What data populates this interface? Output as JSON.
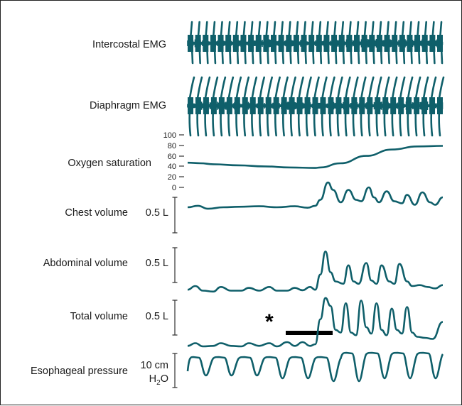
{
  "chart_data": {
    "type": "line",
    "title": "",
    "trace_color": "#0f5f6a",
    "annotation": {
      "symbol": "*",
      "bar_label": ""
    },
    "traces": [
      {
        "name": "Intercostal EMG",
        "kind": "emg",
        "scale_label": "",
        "bursts": 34,
        "y_range": [
          -1,
          1
        ]
      },
      {
        "name": "Diaphragm EMG",
        "kind": "emg-tall",
        "scale_label": "",
        "bursts": 33,
        "y_range": [
          -1,
          1
        ]
      },
      {
        "name": "Oxygen saturation",
        "kind": "line",
        "scale_label": "",
        "ticks": [
          "100",
          "80",
          "60",
          "40",
          "20",
          "0"
        ],
        "y_range": [
          0,
          100
        ],
        "x": [
          0,
          0.05,
          0.1,
          0.2,
          0.3,
          0.4,
          0.5,
          0.52,
          0.6,
          0.7,
          0.8,
          0.9,
          1.0
        ],
        "values": [
          47,
          46,
          44,
          42,
          40,
          38,
          37,
          38,
          46,
          60,
          72,
          78,
          79
        ]
      },
      {
        "name": "Chest volume",
        "kind": "line",
        "scale_label": "0.5 L",
        "y_range": [
          0,
          1
        ],
        "x": [
          0,
          0.04,
          0.08,
          0.14,
          0.2,
          0.28,
          0.35,
          0.42,
          0.47,
          0.5,
          0.52,
          0.55,
          0.57,
          0.6,
          0.63,
          0.66,
          0.68,
          0.71,
          0.73,
          0.75,
          0.78,
          0.81,
          0.84,
          0.86,
          0.89,
          0.92,
          0.95,
          0.97,
          1.0
        ],
        "values": [
          0.1,
          0.13,
          0.07,
          0.1,
          0.11,
          0.12,
          0.1,
          0.12,
          0.09,
          0.13,
          0.25,
          0.6,
          0.45,
          0.2,
          0.45,
          0.25,
          0.22,
          0.5,
          0.3,
          0.2,
          0.42,
          0.22,
          0.18,
          0.35,
          0.15,
          0.4,
          0.2,
          0.15,
          0.3
        ]
      },
      {
        "name": "Abdominal volume",
        "kind": "line",
        "scale_label": "0.5 L",
        "y_range": [
          0,
          1
        ],
        "x": [
          0,
          0.03,
          0.06,
          0.1,
          0.13,
          0.17,
          0.21,
          0.24,
          0.28,
          0.32,
          0.35,
          0.39,
          0.42,
          0.45,
          0.48,
          0.5,
          0.52,
          0.54,
          0.56,
          0.58,
          0.61,
          0.63,
          0.65,
          0.67,
          0.7,
          0.72,
          0.74,
          0.76,
          0.79,
          0.81,
          0.83,
          0.86,
          0.88,
          0.91,
          0.94,
          0.97,
          1.0
        ],
        "values": [
          0.12,
          0.2,
          0.1,
          0.08,
          0.18,
          0.1,
          0.1,
          0.16,
          0.1,
          0.18,
          0.1,
          0.1,
          0.16,
          0.11,
          0.18,
          0.12,
          0.45,
          0.95,
          0.5,
          0.3,
          0.25,
          0.65,
          0.3,
          0.25,
          0.7,
          0.32,
          0.25,
          0.65,
          0.3,
          0.25,
          0.68,
          0.3,
          0.2,
          0.22,
          0.18,
          0.15,
          0.22
        ]
      },
      {
        "name": "Total volume",
        "kind": "line",
        "scale_label": "0.5 L",
        "y_range": [
          0,
          1
        ],
        "x": [
          0,
          0.03,
          0.06,
          0.1,
          0.13,
          0.17,
          0.21,
          0.24,
          0.28,
          0.32,
          0.35,
          0.39,
          0.42,
          0.45,
          0.48,
          0.5,
          0.52,
          0.54,
          0.56,
          0.58,
          0.6,
          0.62,
          0.64,
          0.66,
          0.68,
          0.7,
          0.72,
          0.74,
          0.76,
          0.78,
          0.8,
          0.82,
          0.84,
          0.86,
          0.88,
          0.9,
          0.93,
          0.96,
          1.0
        ],
        "values": [
          0.05,
          0.1,
          0.04,
          0.05,
          0.1,
          0.05,
          0.04,
          0.1,
          0.05,
          0.1,
          0.04,
          0.12,
          0.05,
          0.12,
          0.05,
          0.08,
          0.55,
          0.95,
          0.8,
          0.35,
          0.3,
          0.85,
          0.3,
          0.25,
          0.9,
          0.4,
          0.28,
          0.85,
          0.35,
          0.25,
          0.75,
          0.35,
          0.28,
          0.78,
          0.3,
          0.22,
          0.2,
          0.18,
          0.5
        ]
      },
      {
        "name": "Esophageal pressure",
        "kind": "pressure",
        "scale_label": "10 cm H2O",
        "scale_label_line1": "10 cm",
        "scale_label_line2_main": "H",
        "scale_label_line2_sub": "2",
        "scale_label_line2_end": "O",
        "cycles": 10,
        "y_range": [
          0,
          1
        ]
      }
    ]
  }
}
